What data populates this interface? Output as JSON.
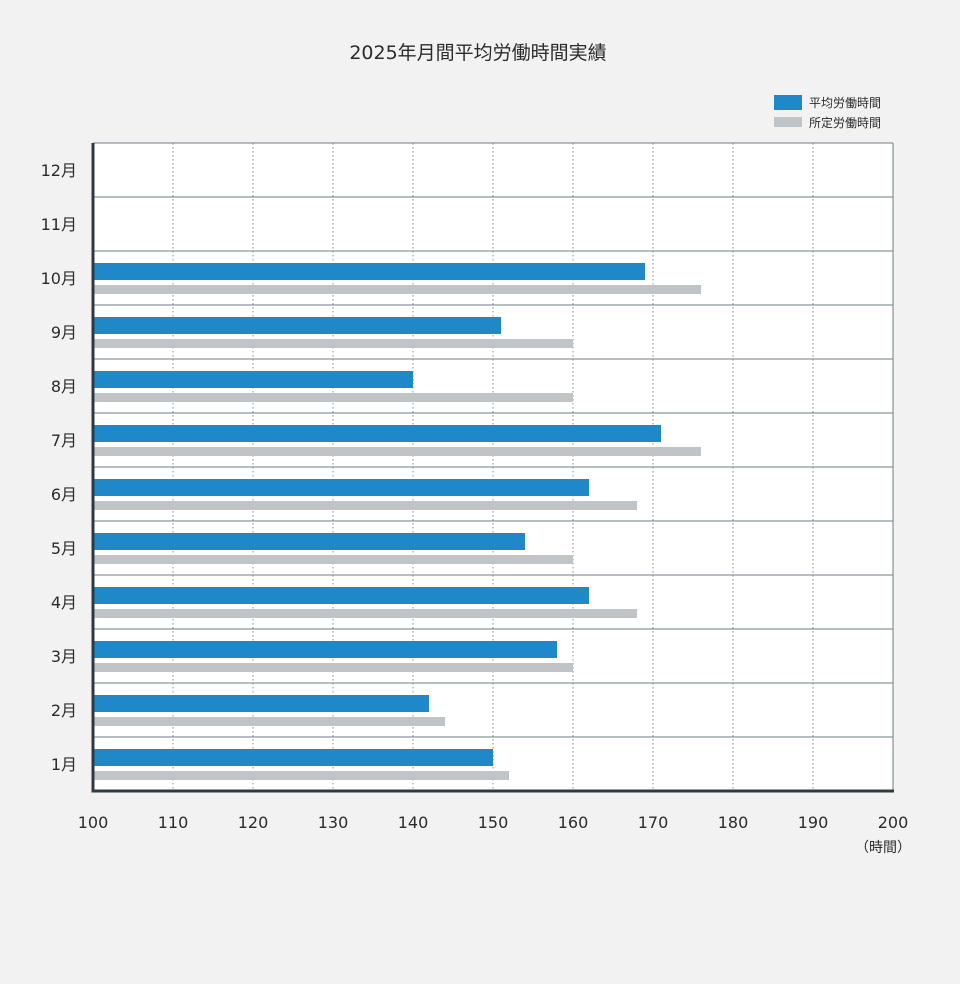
{
  "chart_data": {
    "type": "bar",
    "orientation": "horizontal",
    "title": "2025年月間平均労働時間実績",
    "xlabel": "",
    "ylabel": "",
    "unit_label": "（時間）",
    "xlim": [
      100,
      200
    ],
    "xticks": [
      100,
      110,
      120,
      130,
      140,
      150,
      160,
      170,
      180,
      190,
      200
    ],
    "categories": [
      "12月",
      "11月",
      "10月",
      "9月",
      "8月",
      "7月",
      "6月",
      "5月",
      "4月",
      "3月",
      "2月",
      "1月"
    ],
    "series": [
      {
        "name": "平均労働時間",
        "color": "#1f88c8",
        "values": [
          null,
          null,
          169,
          151,
          140,
          171,
          162,
          154,
          162,
          158,
          142,
          150
        ]
      },
      {
        "name": "所定労働時間",
        "color": "#c0c4c6",
        "values": [
          null,
          null,
          176,
          160,
          160,
          176,
          168,
          160,
          168,
          160,
          144,
          152
        ]
      }
    ],
    "legend_position": "top-right",
    "grid": true
  }
}
